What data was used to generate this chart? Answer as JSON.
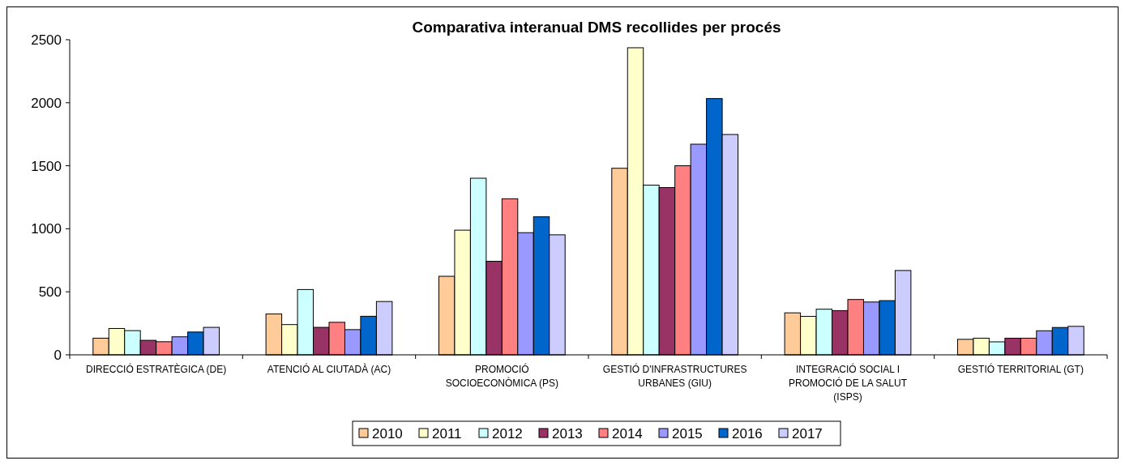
{
  "chart_data": {
    "type": "bar",
    "title": "Comparativa interanual DMS recollides per procés",
    "categories": [
      "DIRECCIÓ ESTRATÈGICA (DE)",
      "ATENCIÓ AL CIUTADÀ (AC)",
      "PROMOCIÓ SOCIOECONÒMICA (PS)",
      "GESTIÓ D'INFRASTRUCTURES URBANES (GIU)",
      "INTEGRACIÓ SOCIAL I PROMOCIÓ DE LA SALUT (ISPS)",
      "GESTIÓ TERRITORIAL (GT)"
    ],
    "series": [
      {
        "name": "2010",
        "color": "#ffcc99",
        "values": [
          132,
          324,
          623,
          1480,
          333,
          123
        ]
      },
      {
        "name": "2011",
        "color": "#ffffcc",
        "values": [
          209,
          240,
          989,
          2436,
          305,
          132
        ]
      },
      {
        "name": "2012",
        "color": "#ccffff",
        "values": [
          192,
          518,
          1401,
          1346,
          362,
          103
        ]
      },
      {
        "name": "2013",
        "color": "#993366",
        "values": [
          115,
          218,
          742,
          1327,
          351,
          132
        ]
      },
      {
        "name": "2014",
        "color": "#ff8080",
        "values": [
          104,
          258,
          1238,
          1500,
          439,
          132
        ]
      },
      {
        "name": "2015",
        "color": "#9999ff",
        "values": [
          143,
          200,
          969,
          1671,
          419,
          191
        ]
      },
      {
        "name": "2016",
        "color": "#0066cc",
        "values": [
          181,
          306,
          1095,
          2033,
          430,
          217
        ]
      },
      {
        "name": "2017",
        "color": "#ccccff",
        "values": [
          218,
          423,
          952,
          1748,
          669,
          226
        ]
      }
    ],
    "ylim": [
      0,
      2500
    ],
    "yticks": [
      0,
      500,
      1000,
      1500,
      2000,
      2500
    ],
    "grid": false,
    "legend": "bottom"
  }
}
